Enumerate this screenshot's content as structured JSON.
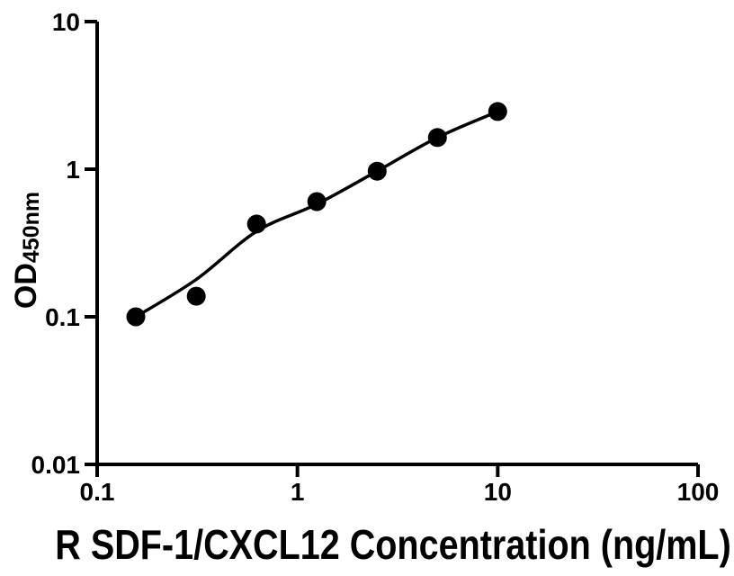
{
  "figure": {
    "background": "#ffffff"
  },
  "chart_data": {
    "type": "scatter",
    "subtype": "elisa-standard-curve",
    "title": "",
    "xlabel": "R SDF-1/CXCL12 Concentration (ng/mL)",
    "ylabel": "OD450nm",
    "ylabel_main": "OD",
    "ylabel_sub": "450nm",
    "x_scale": "log",
    "y_scale": "log",
    "xlim": [
      0.1,
      100
    ],
    "ylim": [
      0.01,
      10
    ],
    "x_ticks": [
      0.1,
      1,
      10,
      100
    ],
    "x_tick_labels": [
      "0.1",
      "1",
      "10",
      "100"
    ],
    "y_ticks": [
      0.01,
      0.1,
      1,
      10
    ],
    "y_tick_labels": [
      "0.01",
      "0.1",
      "1",
      "10"
    ],
    "grid": false,
    "legend": false,
    "axis_color": "#000000",
    "marker_color": "#000000",
    "line_color": "#000000",
    "points": [
      {
        "x": 0.156,
        "y": 0.1
      },
      {
        "x": 0.3125,
        "y": 0.138
      },
      {
        "x": 0.625,
        "y": 0.425
      },
      {
        "x": 1.25,
        "y": 0.603
      },
      {
        "x": 2.5,
        "y": 0.97
      },
      {
        "x": 5,
        "y": 1.64
      },
      {
        "x": 10,
        "y": 2.46
      }
    ],
    "fit_curve": [
      {
        "x": 0.156,
        "y": 0.1
      },
      {
        "x": 0.3125,
        "y": 0.179
      },
      {
        "x": 0.625,
        "y": 0.379
      },
      {
        "x": 1.25,
        "y": 0.58
      },
      {
        "x": 2.5,
        "y": 0.97
      },
      {
        "x": 5,
        "y": 1.64
      },
      {
        "x": 10,
        "y": 2.46
      }
    ]
  }
}
